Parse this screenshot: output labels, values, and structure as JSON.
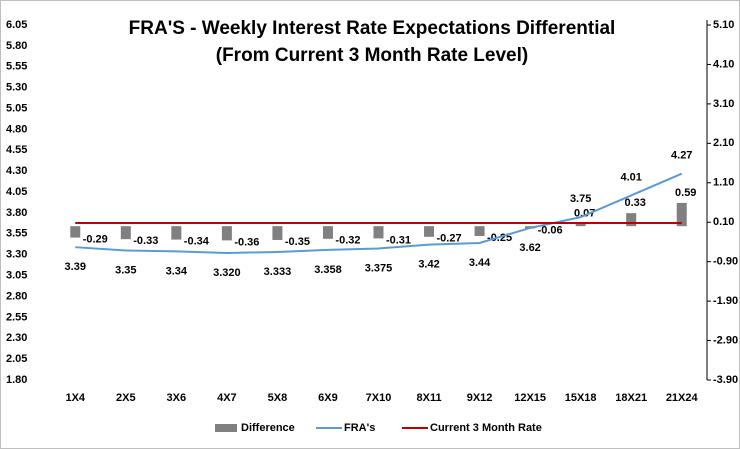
{
  "chart_data": {
    "type": "bar",
    "title": "FRA'S - Weekly Interest Rate Expectations Differential",
    "subtitle": "(From  Current 3 Month Rate Level)",
    "categories": [
      "1X4",
      "2X5",
      "3X6",
      "4X7",
      "5X8",
      "6X9",
      "7X10",
      "8X11",
      "9X12",
      "12X15",
      "15X18",
      "18X21",
      "21X24"
    ],
    "series": [
      {
        "name": "Difference",
        "type": "bar",
        "axis": "y2",
        "color": "#808080",
        "values": [
          -0.29,
          -0.33,
          -0.34,
          -0.36,
          -0.35,
          -0.32,
          -0.31,
          -0.27,
          -0.25,
          -0.06,
          0.07,
          0.33,
          0.59
        ]
      },
      {
        "name": "FRA's",
        "type": "line",
        "color": "#5b9bd5",
        "values": [
          3.39,
          3.35,
          3.34,
          3.32,
          3.333,
          3.358,
          3.375,
          3.42,
          3.44,
          3.62,
          3.75,
          4.01,
          4.27
        ],
        "value_labels": [
          "3.39",
          "3.35",
          "3.34",
          "3.320",
          "3.333",
          "3.358",
          "3.375",
          "3.42",
          "3.44",
          "3.62",
          "3.75",
          "4.01",
          "4.27"
        ]
      },
      {
        "name": "Current 3 Month Rate",
        "type": "line",
        "color": "#c00000",
        "values": [
          3.68,
          3.68,
          3.68,
          3.68,
          3.68,
          3.68,
          3.68,
          3.68,
          3.68,
          3.68,
          3.68,
          3.68,
          3.68
        ]
      }
    ],
    "ylim": [
      1.8,
      6.05
    ],
    "yticks": [
      {
        "value": 1.8,
        "label": "1.80"
      },
      2.05,
      {
        "value": 2.3,
        "label": "2.30"
      },
      2.55,
      {
        "value": 2.8,
        "label": "2.80"
      },
      3.05,
      {
        "value": 3.3,
        "label": "3.30"
      },
      3.55,
      {
        "value": 3.8,
        "label": "3.80"
      },
      4.05,
      {
        "value": 4.3,
        "label": "4.30"
      },
      4.55,
      {
        "value": 4.8,
        "label": "4.80"
      },
      5.05,
      {
        "value": 5.3,
        "label": "5.30"
      },
      5.55,
      {
        "value": 5.8,
        "label": "5.80"
      },
      6.05
    ],
    "y2lim": [
      -3.9,
      5.1
    ],
    "y2ticks": [
      {
        "value": -3.9,
        "label": "-3.90"
      },
      {
        "value": -2.9,
        "label": "-2.90"
      },
      {
        "value": -1.9,
        "label": "-1.90"
      },
      {
        "value": -0.9,
        "label": "-0.90"
      },
      {
        "value": 0.1,
        "label": "0.10"
      },
      {
        "value": 1.1,
        "label": "1.10"
      },
      {
        "value": 2.1,
        "label": "2.10"
      },
      {
        "value": 3.1,
        "label": "3.10"
      },
      {
        "value": 4.1,
        "label": "4.10"
      },
      {
        "value": 5.1,
        "label": "5.10"
      }
    ],
    "legend": "bottom"
  }
}
